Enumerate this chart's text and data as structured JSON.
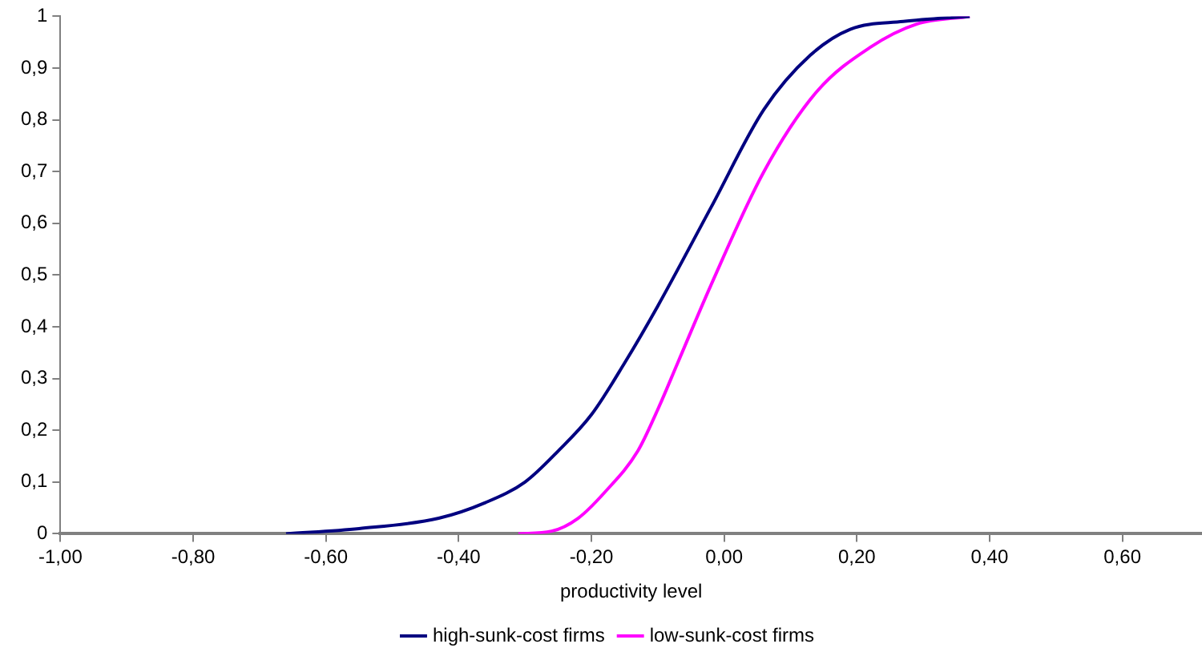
{
  "chart_data": {
    "type": "line",
    "xlabel": "productivity level",
    "xlim": [
      -1,
      0.72
    ],
    "xticks": [
      {
        "value": -1,
        "label": "-1,00"
      },
      {
        "value": -0.8,
        "label": "-0,80"
      },
      {
        "value": -0.6,
        "label": "-0,60"
      },
      {
        "value": -0.4,
        "label": "-0,40"
      },
      {
        "value": -0.2,
        "label": "-0,20"
      },
      {
        "value": 0,
        "label": "0,00"
      },
      {
        "value": 0.2,
        "label": "0,20"
      },
      {
        "value": 0.4,
        "label": "0,40"
      },
      {
        "value": 0.6,
        "label": "0,60"
      }
    ],
    "ylim": [
      0,
      1
    ],
    "yticks": [
      0,
      {
        "value": 0.1,
        "label": "0,1"
      },
      {
        "value": 0.2,
        "label": "0,2"
      },
      {
        "value": 0.3,
        "label": "0,3"
      },
      {
        "value": 0.4,
        "label": "0,4"
      },
      {
        "value": 0.5,
        "label": "0,5"
      },
      {
        "value": 0.6,
        "label": "0,6"
      },
      {
        "value": 0.7,
        "label": "0,7"
      },
      {
        "value": 0.8,
        "label": "0,8"
      },
      {
        "value": 0.9,
        "label": "0,9"
      },
      1
    ],
    "grid": false,
    "legend": "bottom",
    "marker": "none",
    "line_style": "solid",
    "series": [
      {
        "name": "high-sunk-cost firms",
        "color": "#000080",
        "x": [
          -0.66,
          -0.55,
          -0.43,
          -0.36,
          -0.3,
          -0.25,
          -0.2,
          -0.15,
          -0.1,
          -0.02,
          0.06,
          0.13,
          0.19,
          0.27,
          0.37
        ],
        "values": [
          0,
          0.01,
          0.03,
          0.06,
          0.1,
          0.16,
          0.23,
          0.33,
          0.44,
          0.63,
          0.82,
          0.925,
          0.975,
          0.99,
          1
        ]
      },
      {
        "name": "low-sunk-cost firms",
        "color": "#ff00ff",
        "x": [
          -0.31,
          -0.26,
          -0.22,
          -0.18,
          -0.13,
          -0.1,
          -0.07,
          -0.02,
          0.06,
          0.14,
          0.22,
          0.29,
          0.37
        ],
        "values": [
          0,
          0.005,
          0.03,
          0.08,
          0.16,
          0.24,
          0.33,
          0.48,
          0.7,
          0.855,
          0.94,
          0.985,
          1
        ]
      }
    ]
  }
}
